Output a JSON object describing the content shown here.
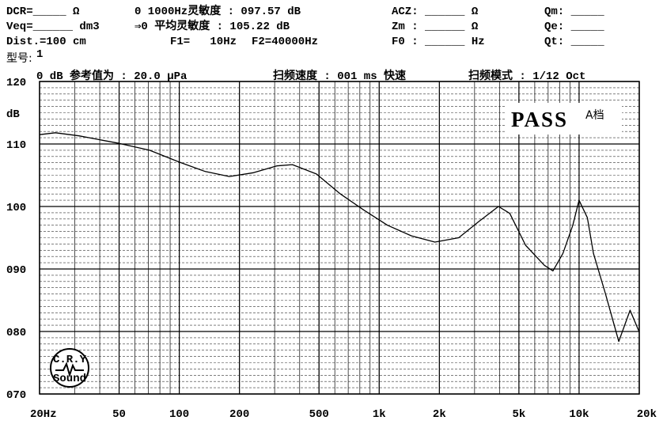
{
  "header": {
    "dcr": "DCR=_____ Ω",
    "sens_1k": "0 1000Hz灵敏度 : 097.57 dB",
    "acz": "ACZ: ______ Ω",
    "qm": "Qm: _____",
    "veq": "Veq=______ dm3",
    "sens_avg": "⇒0 平均灵敏度 : 105.22 dB",
    "zm": "Zm : ______ Ω",
    "qe": "Qe: _____",
    "dist": "Dist.=100 cm",
    "f1": "F1=   10Hz",
    "f2": "F2=40000Hz",
    "f0": "F0 : ______ Hz",
    "qt": "Qt: _____",
    "model_label": "型号:",
    "model": "1",
    "reference": "0 dB 参考值为 : 20.0 μPa",
    "sweep_speed": "扫频速度 : 001 ms 快速",
    "sweep_mode": "扫频模式 : 1/12 Oct"
  },
  "logo": {
    "top": "C.R.Y",
    "bottom": "Sound"
  },
  "chart_data": {
    "type": "line",
    "y_label": "dB",
    "badge": "PASS",
    "badge_note": "A档",
    "x": [
      20,
      24,
      31.5,
      50,
      71,
      100,
      135,
      178,
      235,
      307,
      368,
      485,
      640,
      840,
      1100,
      1450,
      1900,
      2500,
      3150,
      3950,
      4500,
      5400,
      6700,
      7400,
      8300,
      9300,
      10000,
      11000,
      11800,
      13500,
      15800,
      18000,
      20000
    ],
    "series": [
      {
        "color": "#000000",
        "values": [
          111.5,
          111.8,
          111.3,
          110.1,
          109.0,
          107.1,
          105.6,
          104.8,
          105.4,
          106.5,
          106.7,
          105.2,
          102.0,
          99.4,
          97.0,
          95.3,
          94.3,
          95.0,
          97.6,
          100.0,
          98.9,
          93.8,
          90.6,
          89.7,
          92.5,
          97.0,
          101.0,
          98.2,
          92.5,
          86.2,
          78.4,
          83.4,
          79.9
        ]
      }
    ],
    "xlim": [
      20,
      20000
    ],
    "ylim": [
      70,
      120
    ],
    "x_log": true,
    "grid": true,
    "minor_grid": true,
    "xticks": [
      {
        "value": 20,
        "label": "20Hz"
      },
      50,
      100,
      200,
      500,
      {
        "value": 1000,
        "label": "1k"
      },
      {
        "value": 2000,
        "label": "2k"
      },
      {
        "value": 5000,
        "label": "5k"
      },
      {
        "value": 10000,
        "label": "10k"
      },
      {
        "value": 20000,
        "label": "20k"
      }
    ],
    "yticks": [
      {
        "value": 70,
        "label": "070"
      },
      {
        "value": 80,
        "label": "080"
      },
      {
        "value": 90,
        "label": "090"
      },
      100,
      110,
      120
    ]
  }
}
